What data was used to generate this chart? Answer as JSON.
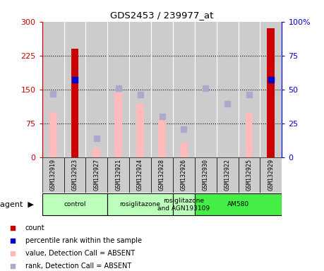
{
  "title": "GDS2453 / 239977_at",
  "samples": [
    "GSM132919",
    "GSM132923",
    "GSM132927",
    "GSM132921",
    "GSM132924",
    "GSM132928",
    "GSM132926",
    "GSM132930",
    "GSM132922",
    "GSM132925",
    "GSM132929"
  ],
  "count_values": [
    null,
    240,
    null,
    null,
    null,
    null,
    null,
    null,
    null,
    null,
    285
  ],
  "percentile_rank_right": [
    null,
    57,
    null,
    null,
    null,
    null,
    null,
    null,
    null,
    null,
    57
  ],
  "pink_bar_values": [
    100,
    null,
    20,
    143,
    118,
    85,
    32,
    null,
    null,
    98,
    null
  ],
  "lavender_sq_values": [
    140,
    null,
    42,
    152,
    138,
    90,
    62,
    152,
    118,
    138,
    null
  ],
  "agent_groups": [
    {
      "label": "control",
      "start": 0,
      "end": 2,
      "color": "#bbffbb"
    },
    {
      "label": "rosiglitazone",
      "start": 3,
      "end": 5,
      "color": "#bbffbb"
    },
    {
      "label": "rosiglitazone\nand AGN193109",
      "start": 6,
      "end": 6,
      "color": "#bbffbb"
    },
    {
      "label": "AM580",
      "start": 7,
      "end": 10,
      "color": "#44ee44"
    }
  ],
  "ylim_left": [
    0,
    300
  ],
  "ylim_right": [
    0,
    100
  ],
  "yticks_left": [
    0,
    75,
    150,
    225,
    300
  ],
  "yticks_right": [
    0,
    25,
    50,
    75,
    100
  ],
  "ytick_labels_left": [
    "0",
    "75",
    "150",
    "225",
    "300"
  ],
  "ytick_labels_right": [
    "0",
    "25",
    "50",
    "75",
    "100%"
  ],
  "left_axis_color": "#cc0000",
  "right_axis_color": "#0000cc",
  "count_color": "#cc0000",
  "percentile_color": "#0000cc",
  "pink_color": "#ffbbbb",
  "lavender_color": "#aaaacc",
  "plot_bg_color": "#cccccc",
  "sample_box_color": "#cccccc",
  "legend_items": [
    {
      "color": "#cc0000",
      "label": "count",
      "marker": "s"
    },
    {
      "color": "#0000cc",
      "label": "percentile rank within the sample",
      "marker": "s"
    },
    {
      "color": "#ffbbbb",
      "label": "value, Detection Call = ABSENT",
      "marker": "s"
    },
    {
      "color": "#aaaacc",
      "label": "rank, Detection Call = ABSENT",
      "marker": "s"
    }
  ]
}
